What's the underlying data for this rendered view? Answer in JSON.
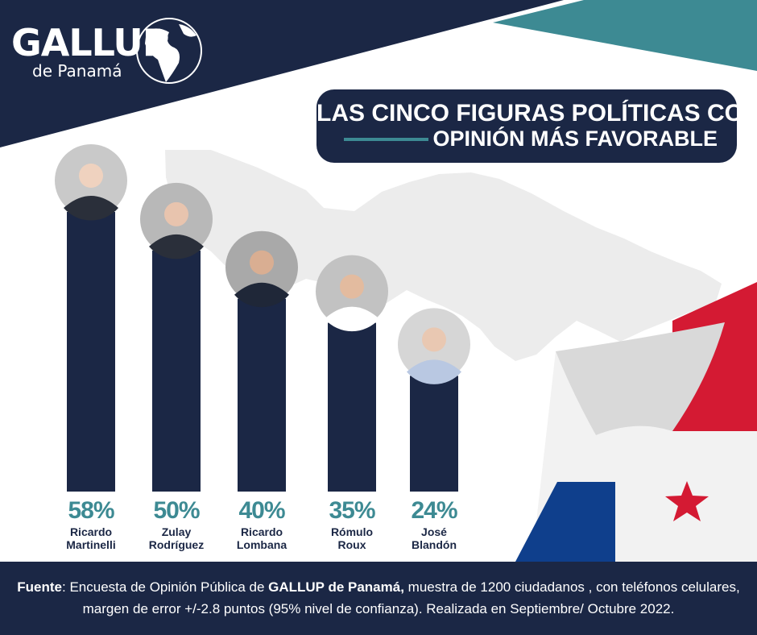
{
  "logo": {
    "name": "GALLUP",
    "sub": "de Panamá"
  },
  "chart_data": {
    "type": "bar",
    "title_line1": "LAS CINCO FIGURAS POLÍTICAS CON",
    "title_line2": "OPINIÓN MÁS  FAVORABLE",
    "categories": [
      "Ricardo\nMartinelli",
      "Zulay\nRodríguez",
      "Ricardo\nLombana",
      "Rómulo\nRoux",
      "José\nBlandón"
    ],
    "values": [
      58,
      50,
      40,
      35,
      24
    ],
    "labels": [
      "58%",
      "50%",
      "40%",
      "35%",
      "24%"
    ],
    "bar_color": "#1b2745",
    "label_color": "#3d8a93"
  },
  "footer": {
    "source_label": "Fuente",
    "text_1": ": Encuesta de Opinión Pública de ",
    "brand": "GALLUP de Panamá,",
    "text_2": " muestra de 1200 ciudadanos , con teléfonos celulares, margen de error +/-2.8 puntos (95% nivel de confianza). Realizada en Septiembre/ Octubre 2022."
  },
  "colors": {
    "navy": "#1b2745",
    "teal": "#3d8a93",
    "flag_red": "#d41a33",
    "flag_blue": "#0f3f8c"
  }
}
